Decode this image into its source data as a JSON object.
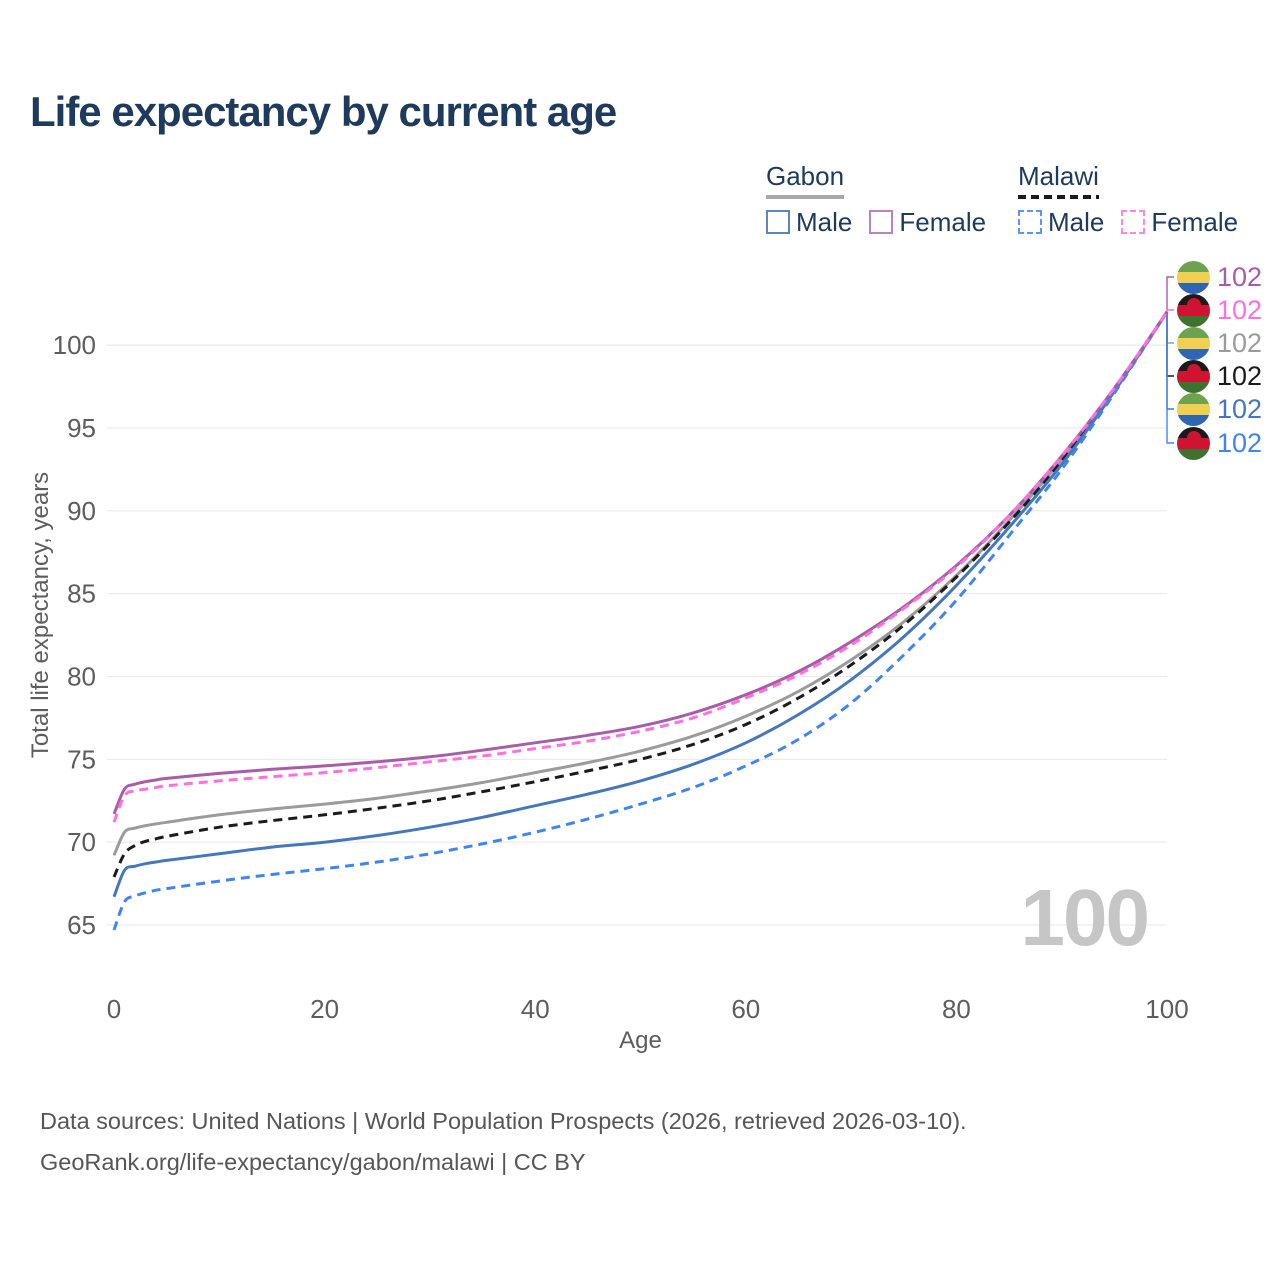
{
  "title": "Life expectancy by current age",
  "watermark": {
    "value": "100"
  },
  "legend": {
    "groups": [
      {
        "country": "Gabon",
        "line_style": "solid",
        "underline_color": "#a8a8a8",
        "items": [
          {
            "label": "Male",
            "color": "#5b85c4",
            "dashed": false
          },
          {
            "label": "Female",
            "color": "#bb82bb",
            "dashed": false
          }
        ]
      },
      {
        "country": "Malawi",
        "line_style": "dashed",
        "underline_color": "#1b1b1b",
        "items": [
          {
            "label": "Male",
            "color": "#5b95f5",
            "dashed": true
          },
          {
            "label": "Female",
            "color": "#ff86e8",
            "dashed": true
          }
        ]
      }
    ]
  },
  "footer": {
    "line1": "Data sources: United Nations | World Population Prospects (2026, retrieved 2026-03-10).",
    "line2": "GeoRank.org/life-expectancy/gabon/malawi | CC BY"
  },
  "flags": {
    "gabon": {
      "stripes": [
        "#6da24e",
        "#f0cf52",
        "#2e65b5"
      ]
    },
    "malawi": {
      "stripes": [
        "#1a1a1a",
        "#cf1330",
        "#3e7230"
      ],
      "sun": "#cf1330"
    }
  },
  "chart_data": {
    "type": "line",
    "title": "Life expectancy by current age",
    "xlabel": "Age",
    "ylabel": "Total life expectancy, years",
    "xlim": [
      0,
      100
    ],
    "ylim": [
      63,
      103.5
    ],
    "x_ticks": [
      0,
      20,
      40,
      60,
      80,
      100
    ],
    "y_ticks": [
      65,
      70,
      75,
      80,
      85,
      90,
      95,
      100
    ],
    "grid": "horizontal",
    "legend_position": "top-right",
    "current_age_indicator": "100",
    "ages": [
      0,
      1,
      2,
      3,
      4,
      5,
      10,
      15,
      20,
      25,
      30,
      35,
      40,
      45,
      50,
      55,
      60,
      65,
      70,
      75,
      80,
      85,
      90,
      95,
      100
    ],
    "series": [
      {
        "name": "Gabon Female",
        "country": "Gabon",
        "sex": "female",
        "color": "#a85da8",
        "dash": "solid",
        "flag_icon": "gabon-flag-icon",
        "end_label": "102",
        "values": [
          71.7,
          73.2,
          73.5,
          73.65,
          73.75,
          73.85,
          74.15,
          74.4,
          74.6,
          74.85,
          75.15,
          75.55,
          76.0,
          76.45,
          77.0,
          77.8,
          78.9,
          80.3,
          82.1,
          84.2,
          86.7,
          89.7,
          93.3,
          97.4,
          102
        ]
      },
      {
        "name": "Malawi Female",
        "country": "Malawi",
        "sex": "female",
        "color": "#ff6fdf",
        "dash": "dashed",
        "flag_icon": "malawi-flag-icon",
        "end_label": "102",
        "values": [
          71.2,
          72.8,
          73.1,
          73.2,
          73.3,
          73.4,
          73.7,
          73.95,
          74.2,
          74.5,
          74.85,
          75.2,
          75.65,
          76.1,
          76.7,
          77.5,
          78.7,
          80.1,
          81.9,
          84.1,
          86.6,
          89.7,
          93.3,
          97.4,
          102
        ]
      },
      {
        "name": "Gabon",
        "country": "Gabon",
        "sex": "both",
        "color": "#9b9b9b",
        "dash": "solid",
        "flag_icon": "gabon-flag-icon",
        "end_label": "102",
        "values": [
          69.2,
          70.6,
          70.85,
          71.0,
          71.1,
          71.2,
          71.65,
          72.0,
          72.3,
          72.65,
          73.1,
          73.6,
          74.2,
          74.8,
          75.5,
          76.4,
          77.6,
          79.1,
          81.0,
          83.3,
          86.1,
          89.4,
          93.1,
          97.3,
          102
        ]
      },
      {
        "name": "Malawi",
        "country": "Malawi",
        "sex": "both",
        "color": "#1b1b1b",
        "dash": "dashed",
        "flag_icon": "malawi-flag-icon",
        "end_label": "102",
        "values": [
          67.9,
          69.3,
          69.8,
          70.05,
          70.2,
          70.35,
          70.9,
          71.3,
          71.65,
          72.05,
          72.5,
          73.05,
          73.65,
          74.3,
          75.0,
          75.9,
          77.1,
          78.7,
          80.7,
          83.1,
          86.0,
          89.3,
          93.0,
          97.3,
          102
        ]
      },
      {
        "name": "Gabon Male",
        "country": "Gabon",
        "sex": "male",
        "color": "#4577bd",
        "dash": "solid",
        "flag_icon": "gabon-flag-icon",
        "end_label": "102",
        "values": [
          66.7,
          68.3,
          68.55,
          68.7,
          68.8,
          68.9,
          69.3,
          69.7,
          70.0,
          70.4,
          70.9,
          71.5,
          72.2,
          72.9,
          73.7,
          74.7,
          76.0,
          77.7,
          79.8,
          82.4,
          85.5,
          89.0,
          92.8,
          97.2,
          102
        ]
      },
      {
        "name": "Malawi Male",
        "country": "Malawi",
        "sex": "male",
        "color": "#3f85f2",
        "dash": "dashed",
        "flag_icon": "malawi-flag-icon",
        "end_label": "102",
        "values": [
          64.7,
          66.4,
          66.75,
          66.95,
          67.1,
          67.2,
          67.65,
          68.05,
          68.4,
          68.8,
          69.3,
          69.9,
          70.6,
          71.4,
          72.3,
          73.3,
          74.6,
          76.2,
          78.4,
          81.3,
          84.6,
          88.5,
          92.5,
          97.1,
          102
        ]
      }
    ]
  }
}
